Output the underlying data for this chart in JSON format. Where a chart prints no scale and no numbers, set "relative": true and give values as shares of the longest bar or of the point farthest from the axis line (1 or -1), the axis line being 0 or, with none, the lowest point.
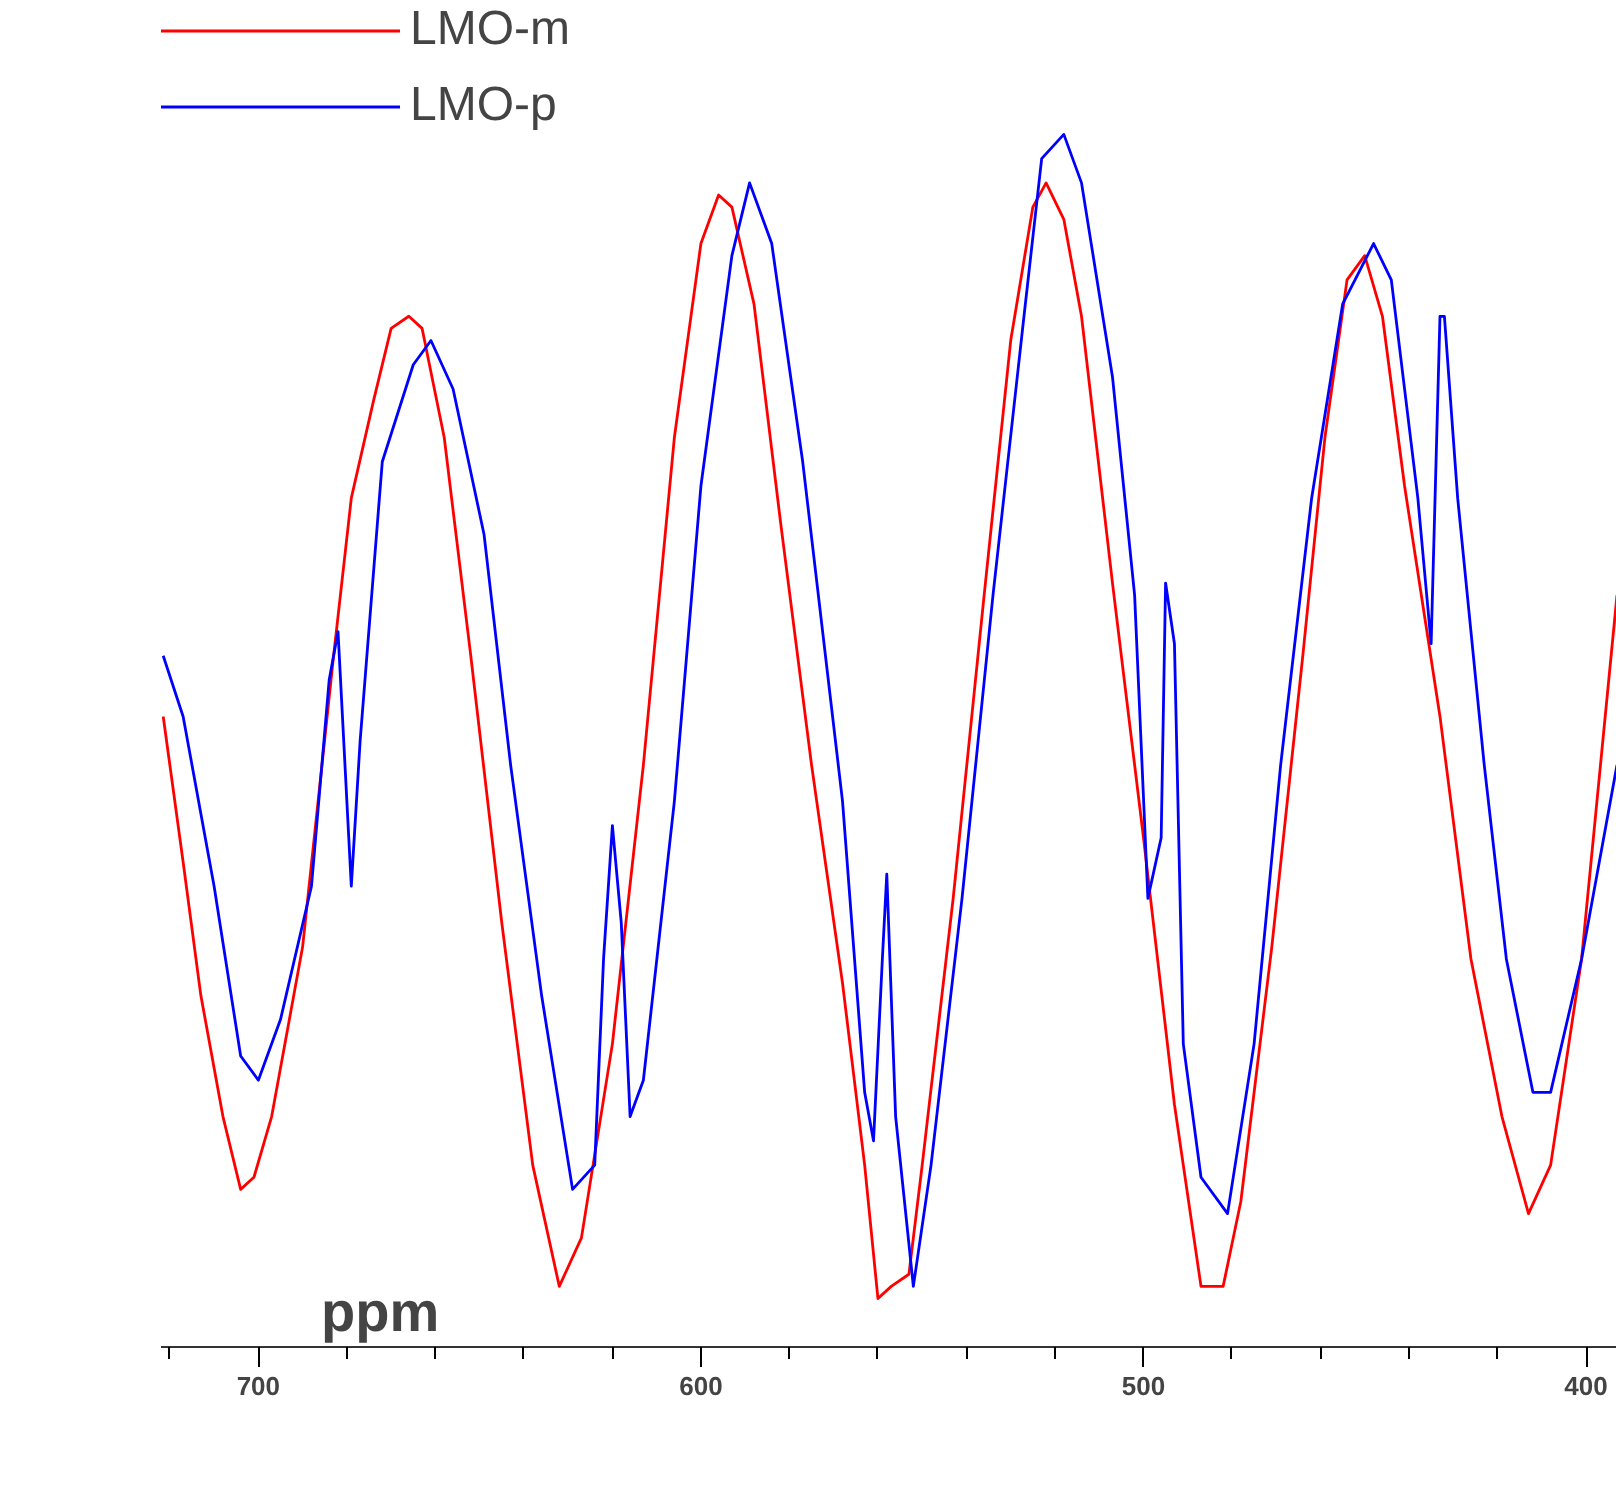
{
  "chart_data": {
    "type": "line",
    "relative": true,
    "xlabel": "ppm",
    "legend": "top left",
    "grid": false,
    "marker": "none",
    "line_style": "solid",
    "xlim": [
      722,
      393
    ],
    "xticks": [
      {
        "value": 720,
        "label": null
      },
      700,
      {
        "value": 680,
        "label": null
      },
      {
        "value": 660,
        "label": null
      },
      {
        "value": 640,
        "label": null
      },
      {
        "value": 620,
        "label": null
      },
      600,
      {
        "value": 580,
        "label": null
      },
      {
        "value": 560,
        "label": null
      },
      {
        "value": 540,
        "label": null
      },
      {
        "value": 520,
        "label": null
      },
      500,
      {
        "value": 480,
        "label": null
      },
      {
        "value": 460,
        "label": null
      },
      {
        "value": 440,
        "label": null
      },
      {
        "value": 420,
        "label": null
      },
      400
    ],
    "series": [
      {
        "name": "LMO-m",
        "color": "#ff0000",
        "x": [
          721.5,
          717,
          713,
          708,
          704,
          701,
          697,
          690,
          683,
          679,
          674,
          670,
          666,
          663,
          658,
          652,
          645,
          638,
          632,
          627,
          620,
          613,
          606,
          600,
          596,
          593,
          588,
          582,
          575,
          568,
          563,
          560,
          557,
          553,
          550,
          543,
          536,
          530,
          525,
          522,
          518,
          514,
          507,
          500,
          493,
          487,
          482,
          478,
          471,
          464,
          459,
          454,
          450,
          446,
          441,
          433,
          426,
          419,
          413,
          408,
          401,
          393
        ],
        "values": [
          0.52,
          0.4,
          0.29,
          0.19,
          0.13,
          0.14,
          0.19,
          0.33,
          0.57,
          0.7,
          0.78,
          0.84,
          0.85,
          0.84,
          0.75,
          0.57,
          0.35,
          0.15,
          0.05,
          0.09,
          0.25,
          0.48,
          0.75,
          0.91,
          0.95,
          0.94,
          0.86,
          0.68,
          0.48,
          0.3,
          0.15,
          0.04,
          0.05,
          0.06,
          0.15,
          0.37,
          0.62,
          0.83,
          0.94,
          0.96,
          0.93,
          0.85,
          0.63,
          0.42,
          0.2,
          0.05,
          0.05,
          0.12,
          0.33,
          0.57,
          0.75,
          0.88,
          0.9,
          0.85,
          0.71,
          0.52,
          0.32,
          0.19,
          0.11,
          0.15,
          0.32,
          0.62
        ]
      },
      {
        "name": "LMO-p",
        "color": "#0000ff",
        "x": [
          721.5,
          717,
          710,
          704,
          700,
          695,
          688,
          684,
          682,
          681,
          679,
          677,
          672,
          665,
          661,
          656,
          649,
          643,
          636,
          629,
          624,
          622,
          620,
          618,
          616,
          613,
          606,
          600,
          593,
          589,
          584,
          577,
          568,
          563,
          561,
          559,
          558,
          556,
          552,
          548,
          541,
          534,
          527,
          523,
          518,
          514,
          507,
          502,
          499,
          496,
          495,
          493,
          491,
          487,
          481,
          475,
          469,
          462,
          455,
          448,
          444,
          438,
          435,
          433,
          432,
          429,
          423,
          418,
          412,
          408,
          401,
          393
        ],
        "values": [
          0.57,
          0.52,
          0.38,
          0.24,
          0.22,
          0.27,
          0.38,
          0.55,
          0.59,
          0.52,
          0.38,
          0.5,
          0.73,
          0.81,
          0.83,
          0.79,
          0.67,
          0.48,
          0.29,
          0.13,
          0.15,
          0.32,
          0.43,
          0.35,
          0.19,
          0.22,
          0.45,
          0.71,
          0.9,
          0.96,
          0.91,
          0.73,
          0.45,
          0.21,
          0.17,
          0.32,
          0.39,
          0.19,
          0.05,
          0.15,
          0.37,
          0.62,
          0.85,
          0.98,
          1,
          0.96,
          0.8,
          0.62,
          0.37,
          0.42,
          0.63,
          0.58,
          0.25,
          0.14,
          0.11,
          0.25,
          0.48,
          0.7,
          0.86,
          0.91,
          0.88,
          0.7,
          0.58,
          0.85,
          0.85,
          0.7,
          0.48,
          0.32,
          0.21,
          0.21,
          0.32,
          0.48
        ]
      }
    ]
  }
}
